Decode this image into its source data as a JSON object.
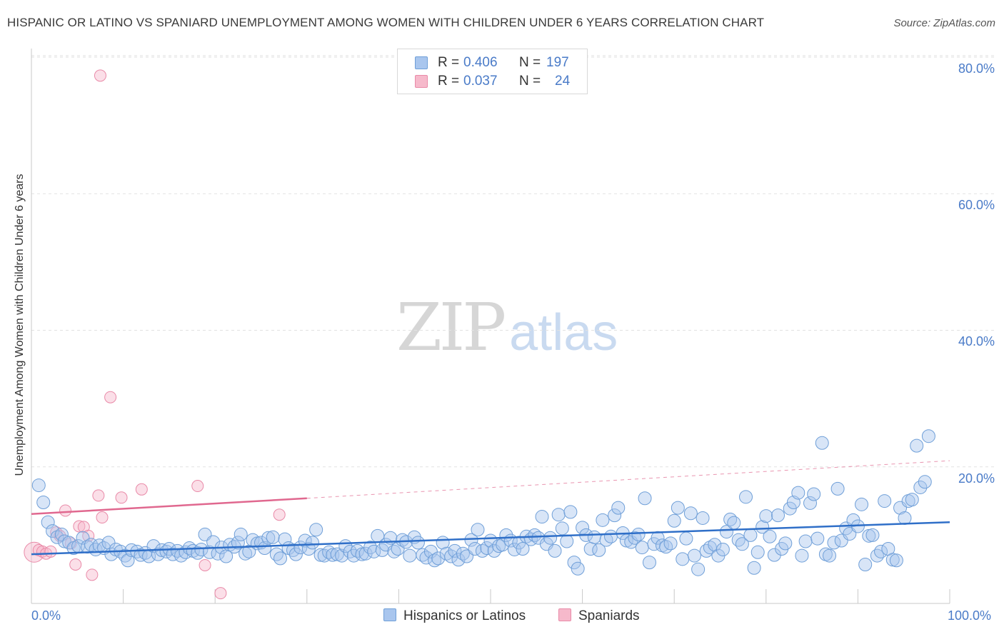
{
  "header": {
    "title": "HISPANIC OR LATINO VS SPANIARD UNEMPLOYMENT AMONG WOMEN WITH CHILDREN UNDER 6 YEARS CORRELATION CHART",
    "source": "Source: ZipAtlas.com"
  },
  "watermark": {
    "zip": "ZIP",
    "atlas": "atlas"
  },
  "legend": {
    "r_label": "R =",
    "n_label": "N =",
    "rows": [
      {
        "r": "0.406",
        "n": "197"
      },
      {
        "r": "0.037",
        "n": "24"
      }
    ]
  },
  "bottom_legend": {
    "series1": "Hispanics or Latinos",
    "series2": "Spaniards"
  },
  "colors": {
    "blue_fill": "#a9c6ee",
    "blue_stroke": "#6f9fd8",
    "blue_line": "#2f6fc8",
    "pink_fill": "#f6b9cb",
    "pink_stroke": "#e98aa8",
    "pink_line": "#e0688f",
    "tick_text": "#4a7bc8"
  },
  "chart_data": {
    "type": "scatter",
    "title": "HISPANIC OR LATINO VS SPANIARD UNEMPLOYMENT AMONG WOMEN WITH CHILDREN UNDER 6 YEARS CORRELATION CHART",
    "xlabel": "",
    "ylabel": "Unemployment Among Women with Children Under 6 years",
    "xlim": [
      0,
      100
    ],
    "ylim": [
      0,
      80
    ],
    "x_tick_labels": [
      "0.0%",
      "100.0%"
    ],
    "y_tick_labels": [
      "20.0%",
      "40.0%",
      "60.0%",
      "80.0%"
    ],
    "y_ticks": [
      20,
      40,
      60,
      80
    ],
    "grid": true,
    "legend_position": "top-center",
    "series": [
      {
        "name": "Hispanics or Latinos",
        "R": 0.406,
        "N": 197,
        "trend": {
          "x": [
            0,
            100
          ],
          "y": [
            7.2,
            11.9
          ]
        },
        "points": [
          [
            0.8,
            17.3
          ],
          [
            1.3,
            14.8
          ],
          [
            1.8,
            11.9
          ],
          [
            2.3,
            10.6
          ],
          [
            2.8,
            9.7
          ],
          [
            3.3,
            10.1
          ],
          [
            3.6,
            9.1
          ],
          [
            4.1,
            8.9
          ],
          [
            4.6,
            8.1
          ],
          [
            5.1,
            8.4
          ],
          [
            5.6,
            9.6
          ],
          [
            6.1,
            8.3
          ],
          [
            6.5,
            8.6
          ],
          [
            7.0,
            7.9
          ],
          [
            7.4,
            8.5
          ],
          [
            7.9,
            8.1
          ],
          [
            8.4,
            8.9
          ],
          [
            8.7,
            7.2
          ],
          [
            9.2,
            7.9
          ],
          [
            9.7,
            7.6
          ],
          [
            10.2,
            7.0
          ],
          [
            10.5,
            6.3
          ],
          [
            10.9,
            7.8
          ],
          [
            11.5,
            7.6
          ],
          [
            11.9,
            7.1
          ],
          [
            12.4,
            7.4
          ],
          [
            12.8,
            6.9
          ],
          [
            13.3,
            8.4
          ],
          [
            13.8,
            7.2
          ],
          [
            14.2,
            7.8
          ],
          [
            14.7,
            7.6
          ],
          [
            15.0,
            8.0
          ],
          [
            15.4,
            7.2
          ],
          [
            15.9,
            7.7
          ],
          [
            16.3,
            7.0
          ],
          [
            16.8,
            7.5
          ],
          [
            17.2,
            8.1
          ],
          [
            17.6,
            7.7
          ],
          [
            18.1,
            7.4
          ],
          [
            18.5,
            7.9
          ],
          [
            18.9,
            10.1
          ],
          [
            19.4,
            7.5
          ],
          [
            19.8,
            9.0
          ],
          [
            20.3,
            7.3
          ],
          [
            20.7,
            8.2
          ],
          [
            21.2,
            6.9
          ],
          [
            21.6,
            8.6
          ],
          [
            22.1,
            8.3
          ],
          [
            22.5,
            8.9
          ],
          [
            22.8,
            10.1
          ],
          [
            23.3,
            7.3
          ],
          [
            23.7,
            7.6
          ],
          [
            24.1,
            9.3
          ],
          [
            24.6,
            8.8
          ],
          [
            25.0,
            8.9
          ],
          [
            25.4,
            8.1
          ],
          [
            25.8,
            9.6
          ],
          [
            26.3,
            9.7
          ],
          [
            26.7,
            7.2
          ],
          [
            27.1,
            6.6
          ],
          [
            27.6,
            9.4
          ],
          [
            28.0,
            8.1
          ],
          [
            28.5,
            7.8
          ],
          [
            28.8,
            7.2
          ],
          [
            29.3,
            8.2
          ],
          [
            29.8,
            9.2
          ],
          [
            30.2,
            8.0
          ],
          [
            30.6,
            8.9
          ],
          [
            31.0,
            10.8
          ],
          [
            31.5,
            7.1
          ],
          [
            31.9,
            7.0
          ],
          [
            32.4,
            7.5
          ],
          [
            32.8,
            7.1
          ],
          [
            33.3,
            7.2
          ],
          [
            33.8,
            7.0
          ],
          [
            34.2,
            8.4
          ],
          [
            34.7,
            7.6
          ],
          [
            35.1,
            7.0
          ],
          [
            35.5,
            7.7
          ],
          [
            36.0,
            7.2
          ],
          [
            36.4,
            7.3
          ],
          [
            36.9,
            8.2
          ],
          [
            37.3,
            7.6
          ],
          [
            37.7,
            9.9
          ],
          [
            38.2,
            7.8
          ],
          [
            38.6,
            8.6
          ],
          [
            39.1,
            9.6
          ],
          [
            39.5,
            7.6
          ],
          [
            39.9,
            8.0
          ],
          [
            40.4,
            9.3
          ],
          [
            40.8,
            9.0
          ],
          [
            41.2,
            7.0
          ],
          [
            41.7,
            9.7
          ],
          [
            42.1,
            8.9
          ],
          [
            42.6,
            7.1
          ],
          [
            43.0,
            6.7
          ],
          [
            43.5,
            7.6
          ],
          [
            43.9,
            6.3
          ],
          [
            44.3,
            6.6
          ],
          [
            44.8,
            8.9
          ],
          [
            45.2,
            7.3
          ],
          [
            45.7,
            6.9
          ],
          [
            46.1,
            7.7
          ],
          [
            46.5,
            6.4
          ],
          [
            47.0,
            7.3
          ],
          [
            47.4,
            6.9
          ],
          [
            47.9,
            9.3
          ],
          [
            48.3,
            8.0
          ],
          [
            48.6,
            10.8
          ],
          [
            49.1,
            7.7
          ],
          [
            49.6,
            8.1
          ],
          [
            50.0,
            9.2
          ],
          [
            50.4,
            7.7
          ],
          [
            50.9,
            8.4
          ],
          [
            51.3,
            8.6
          ],
          [
            51.7,
            10.0
          ],
          [
            52.2,
            9.2
          ],
          [
            52.6,
            7.9
          ],
          [
            53.1,
            8.9
          ],
          [
            53.5,
            8.0
          ],
          [
            53.9,
            9.8
          ],
          [
            54.4,
            9.4
          ],
          [
            54.8,
            10.0
          ],
          [
            55.2,
            9.6
          ],
          [
            55.6,
            12.7
          ],
          [
            56.1,
            8.7
          ],
          [
            56.5,
            9.6
          ],
          [
            57.0,
            7.7
          ],
          [
            57.4,
            13.0
          ],
          [
            57.8,
            11.0
          ],
          [
            58.3,
            9.1
          ],
          [
            58.7,
            13.4
          ],
          [
            59.1,
            6.0
          ],
          [
            59.5,
            5.1
          ],
          [
            60.0,
            11.1
          ],
          [
            60.4,
            10.0
          ],
          [
            60.9,
            8.0
          ],
          [
            61.3,
            9.7
          ],
          [
            61.8,
            7.8
          ],
          [
            62.2,
            12.2
          ],
          [
            62.6,
            9.3
          ],
          [
            63.1,
            9.8
          ],
          [
            63.5,
            12.9
          ],
          [
            63.9,
            14.0
          ],
          [
            64.4,
            10.3
          ],
          [
            64.8,
            9.2
          ],
          [
            65.3,
            9.0
          ],
          [
            65.7,
            9.6
          ],
          [
            66.1,
            10.1
          ],
          [
            66.5,
            8.2
          ],
          [
            66.8,
            15.4
          ],
          [
            67.3,
            6.0
          ],
          [
            67.8,
            8.7
          ],
          [
            68.2,
            9.6
          ],
          [
            68.7,
            8.5
          ],
          [
            69.1,
            8.3
          ],
          [
            69.6,
            8.8
          ],
          [
            70.0,
            12.1
          ],
          [
            70.4,
            14.0
          ],
          [
            70.9,
            6.5
          ],
          [
            71.3,
            9.5
          ],
          [
            71.8,
            13.2
          ],
          [
            72.2,
            7.0
          ],
          [
            72.6,
            5.0
          ],
          [
            73.1,
            12.5
          ],
          [
            73.5,
            7.7
          ],
          [
            73.9,
            8.2
          ],
          [
            74.4,
            8.6
          ],
          [
            74.8,
            7.0
          ],
          [
            75.3,
            7.9
          ],
          [
            75.7,
            10.5
          ],
          [
            76.1,
            12.3
          ],
          [
            76.5,
            11.8
          ],
          [
            77.0,
            9.3
          ],
          [
            77.4,
            8.7
          ],
          [
            77.8,
            15.6
          ],
          [
            78.3,
            10.0
          ],
          [
            78.7,
            5.2
          ],
          [
            79.1,
            7.5
          ],
          [
            79.6,
            11.2
          ],
          [
            80.0,
            12.8
          ],
          [
            80.4,
            9.8
          ],
          [
            80.9,
            7.1
          ],
          [
            81.3,
            12.9
          ],
          [
            81.7,
            8.0
          ],
          [
            82.1,
            8.8
          ],
          [
            82.6,
            13.9
          ],
          [
            83.0,
            14.8
          ],
          [
            83.5,
            16.2
          ],
          [
            83.9,
            7.0
          ],
          [
            84.3,
            9.1
          ],
          [
            84.8,
            14.7
          ],
          [
            85.2,
            16.0
          ],
          [
            85.6,
            9.5
          ],
          [
            86.1,
            23.5
          ],
          [
            86.5,
            7.2
          ],
          [
            86.9,
            7.0
          ],
          [
            87.4,
            8.9
          ],
          [
            87.8,
            16.8
          ],
          [
            88.2,
            9.2
          ],
          [
            88.7,
            11.0
          ],
          [
            89.1,
            10.2
          ],
          [
            89.5,
            12.2
          ],
          [
            90.0,
            11.3
          ],
          [
            90.4,
            14.5
          ],
          [
            90.8,
            5.7
          ],
          [
            91.2,
            9.9
          ],
          [
            91.6,
            10.0
          ],
          [
            92.1,
            7.0
          ],
          [
            92.5,
            7.6
          ],
          [
            92.9,
            15.0
          ],
          [
            93.3,
            8.0
          ],
          [
            93.8,
            6.4
          ],
          [
            94.2,
            6.3
          ],
          [
            94.6,
            14.0
          ],
          [
            95.1,
            12.5
          ],
          [
            95.5,
            15.0
          ],
          [
            95.9,
            15.2
          ],
          [
            96.4,
            23.1
          ],
          [
            96.8,
            17.0
          ],
          [
            97.3,
            17.8
          ],
          [
            97.7,
            24.5
          ]
        ]
      },
      {
        "name": "Spaniards",
        "R": 0.037,
        "N": 24,
        "trend_solid": {
          "x": [
            0,
            30
          ],
          "y": [
            13.1,
            15.4
          ]
        },
        "trend_dashed": {
          "x": [
            30,
            100
          ],
          "y": [
            15.4,
            20.9
          ]
        },
        "points": [
          [
            0.3,
            7.5
          ],
          [
            0.8,
            7.8
          ],
          [
            1.2,
            7.6
          ],
          [
            1.6,
            7.3
          ],
          [
            2.1,
            7.6
          ],
          [
            2.7,
            10.4
          ],
          [
            3.1,
            9.9
          ],
          [
            3.7,
            13.6
          ],
          [
            4.3,
            8.8
          ],
          [
            4.8,
            5.7
          ],
          [
            5.2,
            11.3
          ],
          [
            5.7,
            11.2
          ],
          [
            6.2,
            9.9
          ],
          [
            6.6,
            4.2
          ],
          [
            7.3,
            15.8
          ],
          [
            7.7,
            12.6
          ],
          [
            7.5,
            77.3
          ],
          [
            8.6,
            30.2
          ],
          [
            9.8,
            15.5
          ],
          [
            12.0,
            16.7
          ],
          [
            18.1,
            17.2
          ],
          [
            18.9,
            5.6
          ],
          [
            20.6,
            1.5
          ],
          [
            27.0,
            13.0
          ]
        ]
      }
    ]
  }
}
